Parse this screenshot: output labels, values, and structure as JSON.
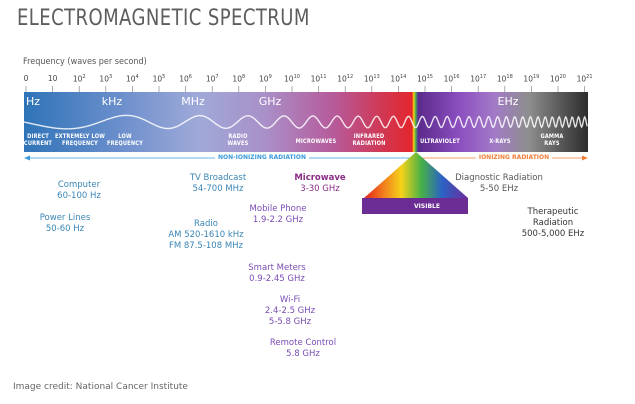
{
  "title": "ELECTROMAGNETIC SPECTRUM",
  "frequency_title": "Frequency (waves per second)",
  "credit": "Image credit: National Cancer Institute",
  "ticks": [
    {
      "base": "0",
      "exp": ""
    },
    {
      "base": "10",
      "exp": ""
    },
    {
      "base": "10",
      "exp": "2"
    },
    {
      "base": "10",
      "exp": "3"
    },
    {
      "base": "10",
      "exp": "4"
    },
    {
      "base": "10",
      "exp": "5"
    },
    {
      "base": "10",
      "exp": "6"
    },
    {
      "base": "10",
      "exp": "7"
    },
    {
      "base": "10",
      "exp": "8"
    },
    {
      "base": "10",
      "exp": "9"
    },
    {
      "base": "10",
      "exp": "10"
    },
    {
      "base": "10",
      "exp": "11"
    },
    {
      "base": "10",
      "exp": "12"
    },
    {
      "base": "10",
      "exp": "13"
    },
    {
      "base": "10",
      "exp": "14"
    },
    {
      "base": "10",
      "exp": "15"
    },
    {
      "base": "10",
      "exp": "16"
    },
    {
      "base": "10",
      "exp": "17"
    },
    {
      "base": "10",
      "exp": "18"
    },
    {
      "base": "10",
      "exp": "19"
    },
    {
      "base": "10",
      "exp": "20"
    },
    {
      "base": "10",
      "exp": "21"
    }
  ],
  "units": [
    "Hz",
    "kHz",
    "MHz",
    "GHz",
    "EHz"
  ],
  "bands": {
    "direct_current": [
      "DIRECT",
      "CURRENT"
    ],
    "extremely_low": [
      "EXTREMELY LOW",
      "FREQUENCY"
    ],
    "low": [
      "LOW",
      "FREQUENCY"
    ],
    "radio": [
      "RADIO",
      "WAVES"
    ],
    "microwaves": [
      "MICROWAVES"
    ],
    "infrared": [
      "INFRARED",
      "RADIATION"
    ],
    "ultraviolet": [
      "ULTRAVIOLET"
    ],
    "xrays": [
      "X-RAYS"
    ],
    "gamma": [
      "GAMMA",
      "RAYS"
    ],
    "visible": "VISIBLE"
  },
  "radiation": {
    "non_ionizing": "NON-IONIZING RADIATION",
    "ionizing": "IONIZING RADIATION"
  },
  "sources": {
    "computer": [
      "Computer",
      "60-100 Hz"
    ],
    "power_lines": [
      "Power Lines",
      "50-60 Hz"
    ],
    "tv": [
      "TV Broadcast",
      "54-700 MHz"
    ],
    "radio": [
      "Radio",
      "AM 520-1610 kHz",
      "FM 87.5-108 MHz"
    ],
    "microwave": [
      "Microwave",
      "3-30 GHz"
    ],
    "mobile": [
      "Mobile Phone",
      "1.9-2.2 GHz"
    ],
    "smart_meters": [
      "Smart Meters",
      "0.9-2.45 GHz"
    ],
    "wifi": [
      "Wi-Fi",
      "2.4-2.5 GHz",
      "5-5.8 GHz"
    ],
    "remote": [
      "Remote Control",
      "5.8 GHz"
    ],
    "diagnostic": [
      "Diagnostic Radiation",
      "5-50 EHz"
    ],
    "therapeutic": [
      "Therapeutic",
      "Radiation",
      "500-5,000 EHz"
    ]
  },
  "colors": {
    "blue_label": "#3a86b4",
    "purple_label": "#7a4cb3",
    "microwave_label": "#8a2c86",
    "non_ionizing": "#3a9ad9",
    "ionizing": "#f07d3a"
  }
}
